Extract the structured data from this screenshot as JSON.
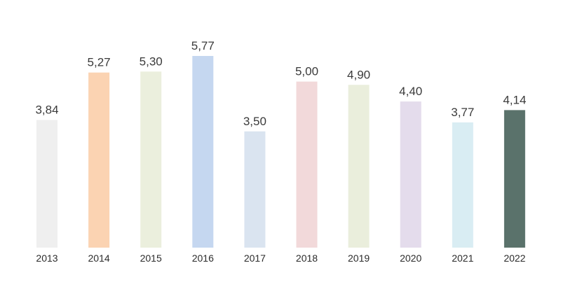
{
  "chart_data": {
    "type": "bar",
    "title": "",
    "xlabel": "",
    "ylabel": "",
    "ylim": [
      0,
      5.77
    ],
    "grid": false,
    "legend": "none",
    "categories": [
      "2013",
      "2014",
      "2015",
      "2016",
      "2017",
      "2018",
      "2019",
      "2020",
      "2021",
      "2022"
    ],
    "values": [
      3.84,
      5.27,
      5.3,
      5.77,
      3.5,
      5.0,
      4.9,
      4.4,
      3.77,
      4.14
    ],
    "value_labels": [
      "3,84",
      "5,27",
      "5,30",
      "5,77",
      "3,50",
      "5,00",
      "4,90",
      "4,40",
      "3,77",
      "4,14"
    ],
    "colors": [
      "#efefef",
      "#fbd3b2",
      "#ebefdd",
      "#c5d7f0",
      "#dae4f0",
      "#f2d9da",
      "#eaeedc",
      "#e4dcec",
      "#d9edf3",
      "#5a726b"
    ]
  }
}
